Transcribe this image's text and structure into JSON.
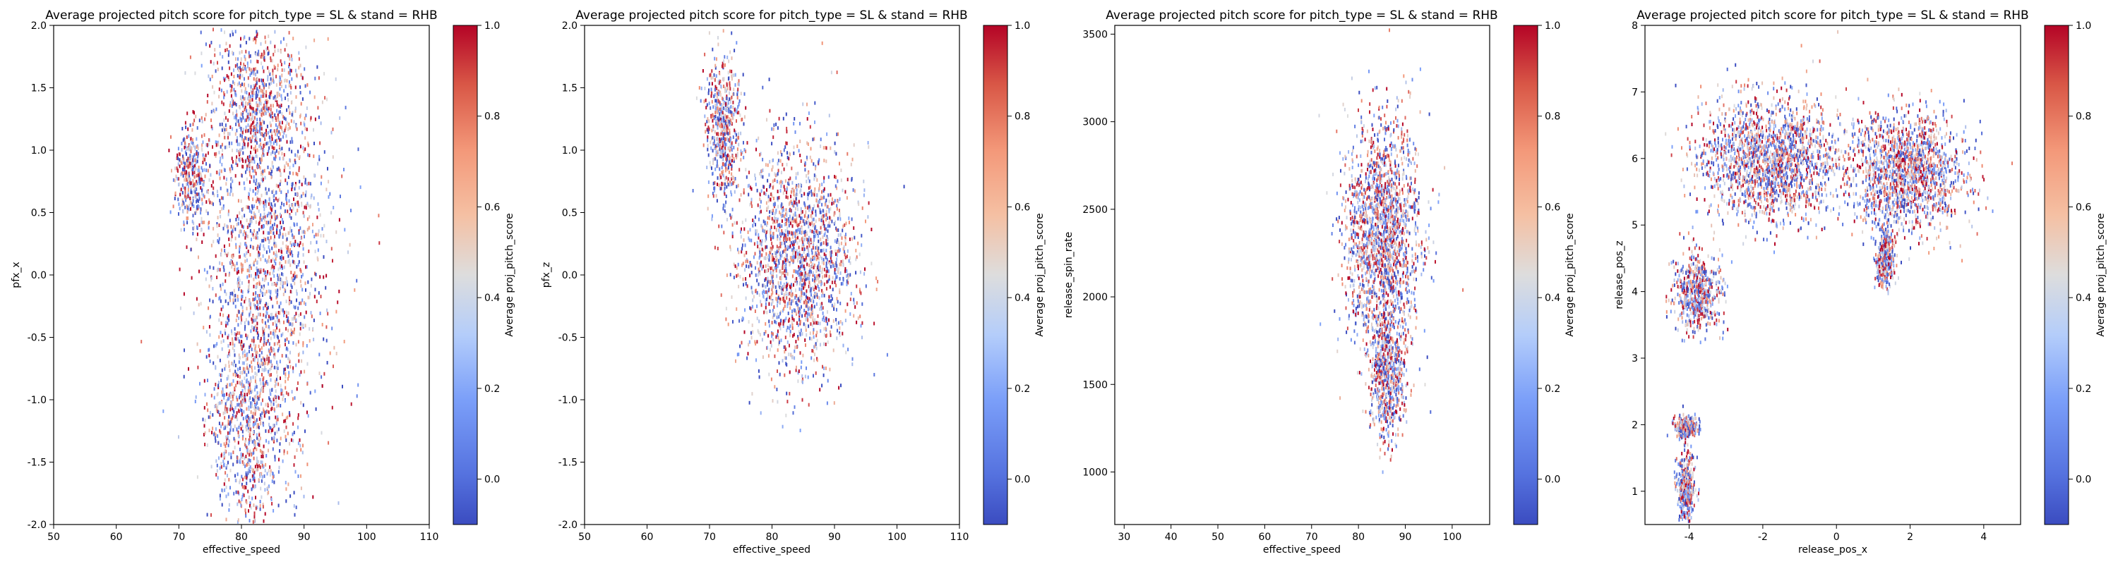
{
  "colors": {
    "cmap_low": "#3b4cc0",
    "cmap_mid": "#dddddd",
    "cmap_high": "#b40426"
  },
  "chart_data": [
    {
      "type": "heatmap",
      "title": "Average projected pitch score for pitch_type = SL & stand = RHB",
      "xlabel": "effective_speed",
      "ylabel": "pfx_x",
      "xlim": [
        50,
        110
      ],
      "ylim": [
        -2.0,
        2.0
      ],
      "xticks": [
        "50",
        "60",
        "70",
        "80",
        "90",
        "100",
        "110"
      ],
      "yticks": [
        "-2.0",
        "-1.5",
        "-1.0",
        "-0.5",
        "0.0",
        "0.5",
        "1.0",
        "1.5",
        "2.0"
      ],
      "colorbar": {
        "label": "Average proj_pitch_score",
        "range": [
          -0.1,
          1.0
        ],
        "ticks": [
          "0.0",
          "0.2",
          "0.4",
          "0.6",
          "0.8",
          "1.0"
        ]
      },
      "clusters": [
        {
          "x": 84,
          "y": 0.2,
          "sx": 5.0,
          "sy": 0.85
        },
        {
          "x": 81,
          "y": -1.2,
          "sx": 3.2,
          "sy": 0.45
        },
        {
          "x": 82,
          "y": 1.4,
          "sx": 3.2,
          "sy": 0.3
        },
        {
          "x": 72,
          "y": 0.8,
          "sx": 1.5,
          "sy": 0.2
        }
      ],
      "grid": false
    },
    {
      "type": "heatmap",
      "title": "Average projected pitch score for pitch_type = SL & stand = RHB",
      "xlabel": "effective_speed",
      "ylabel": "pfx_z",
      "xlim": [
        50,
        110
      ],
      "ylim": [
        -2.0,
        2.0
      ],
      "xticks": [
        "50",
        "60",
        "70",
        "80",
        "90",
        "100",
        "110"
      ],
      "yticks": [
        "-2.0",
        "-1.5",
        "-1.0",
        "-0.5",
        "0.0",
        "0.5",
        "1.0",
        "1.5",
        "2.0"
      ],
      "colorbar": {
        "label": "Average proj_pitch_score",
        "range": [
          -0.1,
          1.0
        ],
        "ticks": [
          "0.0",
          "0.2",
          "0.4",
          "0.6",
          "0.8",
          "1.0"
        ]
      },
      "clusters": [
        {
          "x": 84,
          "y": 0.15,
          "sx": 4.5,
          "sy": 0.45
        },
        {
          "x": 72,
          "y": 1.2,
          "sx": 1.4,
          "sy": 0.3
        }
      ],
      "grid": false
    },
    {
      "type": "heatmap",
      "title": "Average projected pitch score for pitch_type = SL & stand = RHB",
      "xlabel": "effective_speed",
      "ylabel": "release_spin_rate",
      "xlim": [
        28,
        108
      ],
      "ylim": [
        700,
        3550
      ],
      "xticks": [
        "30",
        "40",
        "50",
        "60",
        "70",
        "80",
        "90",
        "100"
      ],
      "yticks": [
        "1000",
        "1500",
        "2000",
        "2500",
        "3000",
        "3500"
      ],
      "colorbar": {
        "label": "Average proj_pitch_score",
        "range": [
          -0.1,
          1.0
        ],
        "ticks": [
          "0.0",
          "0.2",
          "0.4",
          "0.6",
          "0.8",
          "1.0"
        ]
      },
      "clusters": [
        {
          "x": 85,
          "y": 2350,
          "sx": 4.0,
          "sy": 330
        },
        {
          "x": 86,
          "y": 1550,
          "sx": 1.8,
          "sy": 180
        }
      ],
      "grid": false
    },
    {
      "type": "heatmap",
      "title": "Average projected pitch score for pitch_type = SL & stand = RHB",
      "xlabel": "release_pos_x",
      "ylabel": "release_pos_z",
      "xlim": [
        -5.2,
        5.0
      ],
      "ylim": [
        0.5,
        8.0
      ],
      "xticks": [
        "-4",
        "-2",
        "0",
        "2",
        "4"
      ],
      "yticks": [
        "1",
        "2",
        "3",
        "4",
        "5",
        "6",
        "7",
        "8"
      ],
      "colorbar": {
        "label": "Average proj_pitch_score",
        "range": [
          -0.1,
          1.0
        ],
        "ticks": [
          "0.0",
          "0.2",
          "0.4",
          "0.6",
          "0.8",
          "1.0"
        ]
      },
      "clusters": [
        {
          "x": -1.8,
          "y": 6.0,
          "sx": 0.95,
          "sy": 0.45
        },
        {
          "x": 1.9,
          "y": 5.8,
          "sx": 0.8,
          "sy": 0.45
        },
        {
          "x": -3.8,
          "y": 4.0,
          "sx": 0.3,
          "sy": 0.3
        },
        {
          "x": 1.3,
          "y": 4.5,
          "sx": 0.12,
          "sy": 0.2
        },
        {
          "x": -4.1,
          "y": 1.1,
          "sx": 0.12,
          "sy": 0.25
        },
        {
          "x": -4.1,
          "y": 2.0,
          "sx": 0.15,
          "sy": 0.08
        }
      ],
      "grid": false
    }
  ]
}
